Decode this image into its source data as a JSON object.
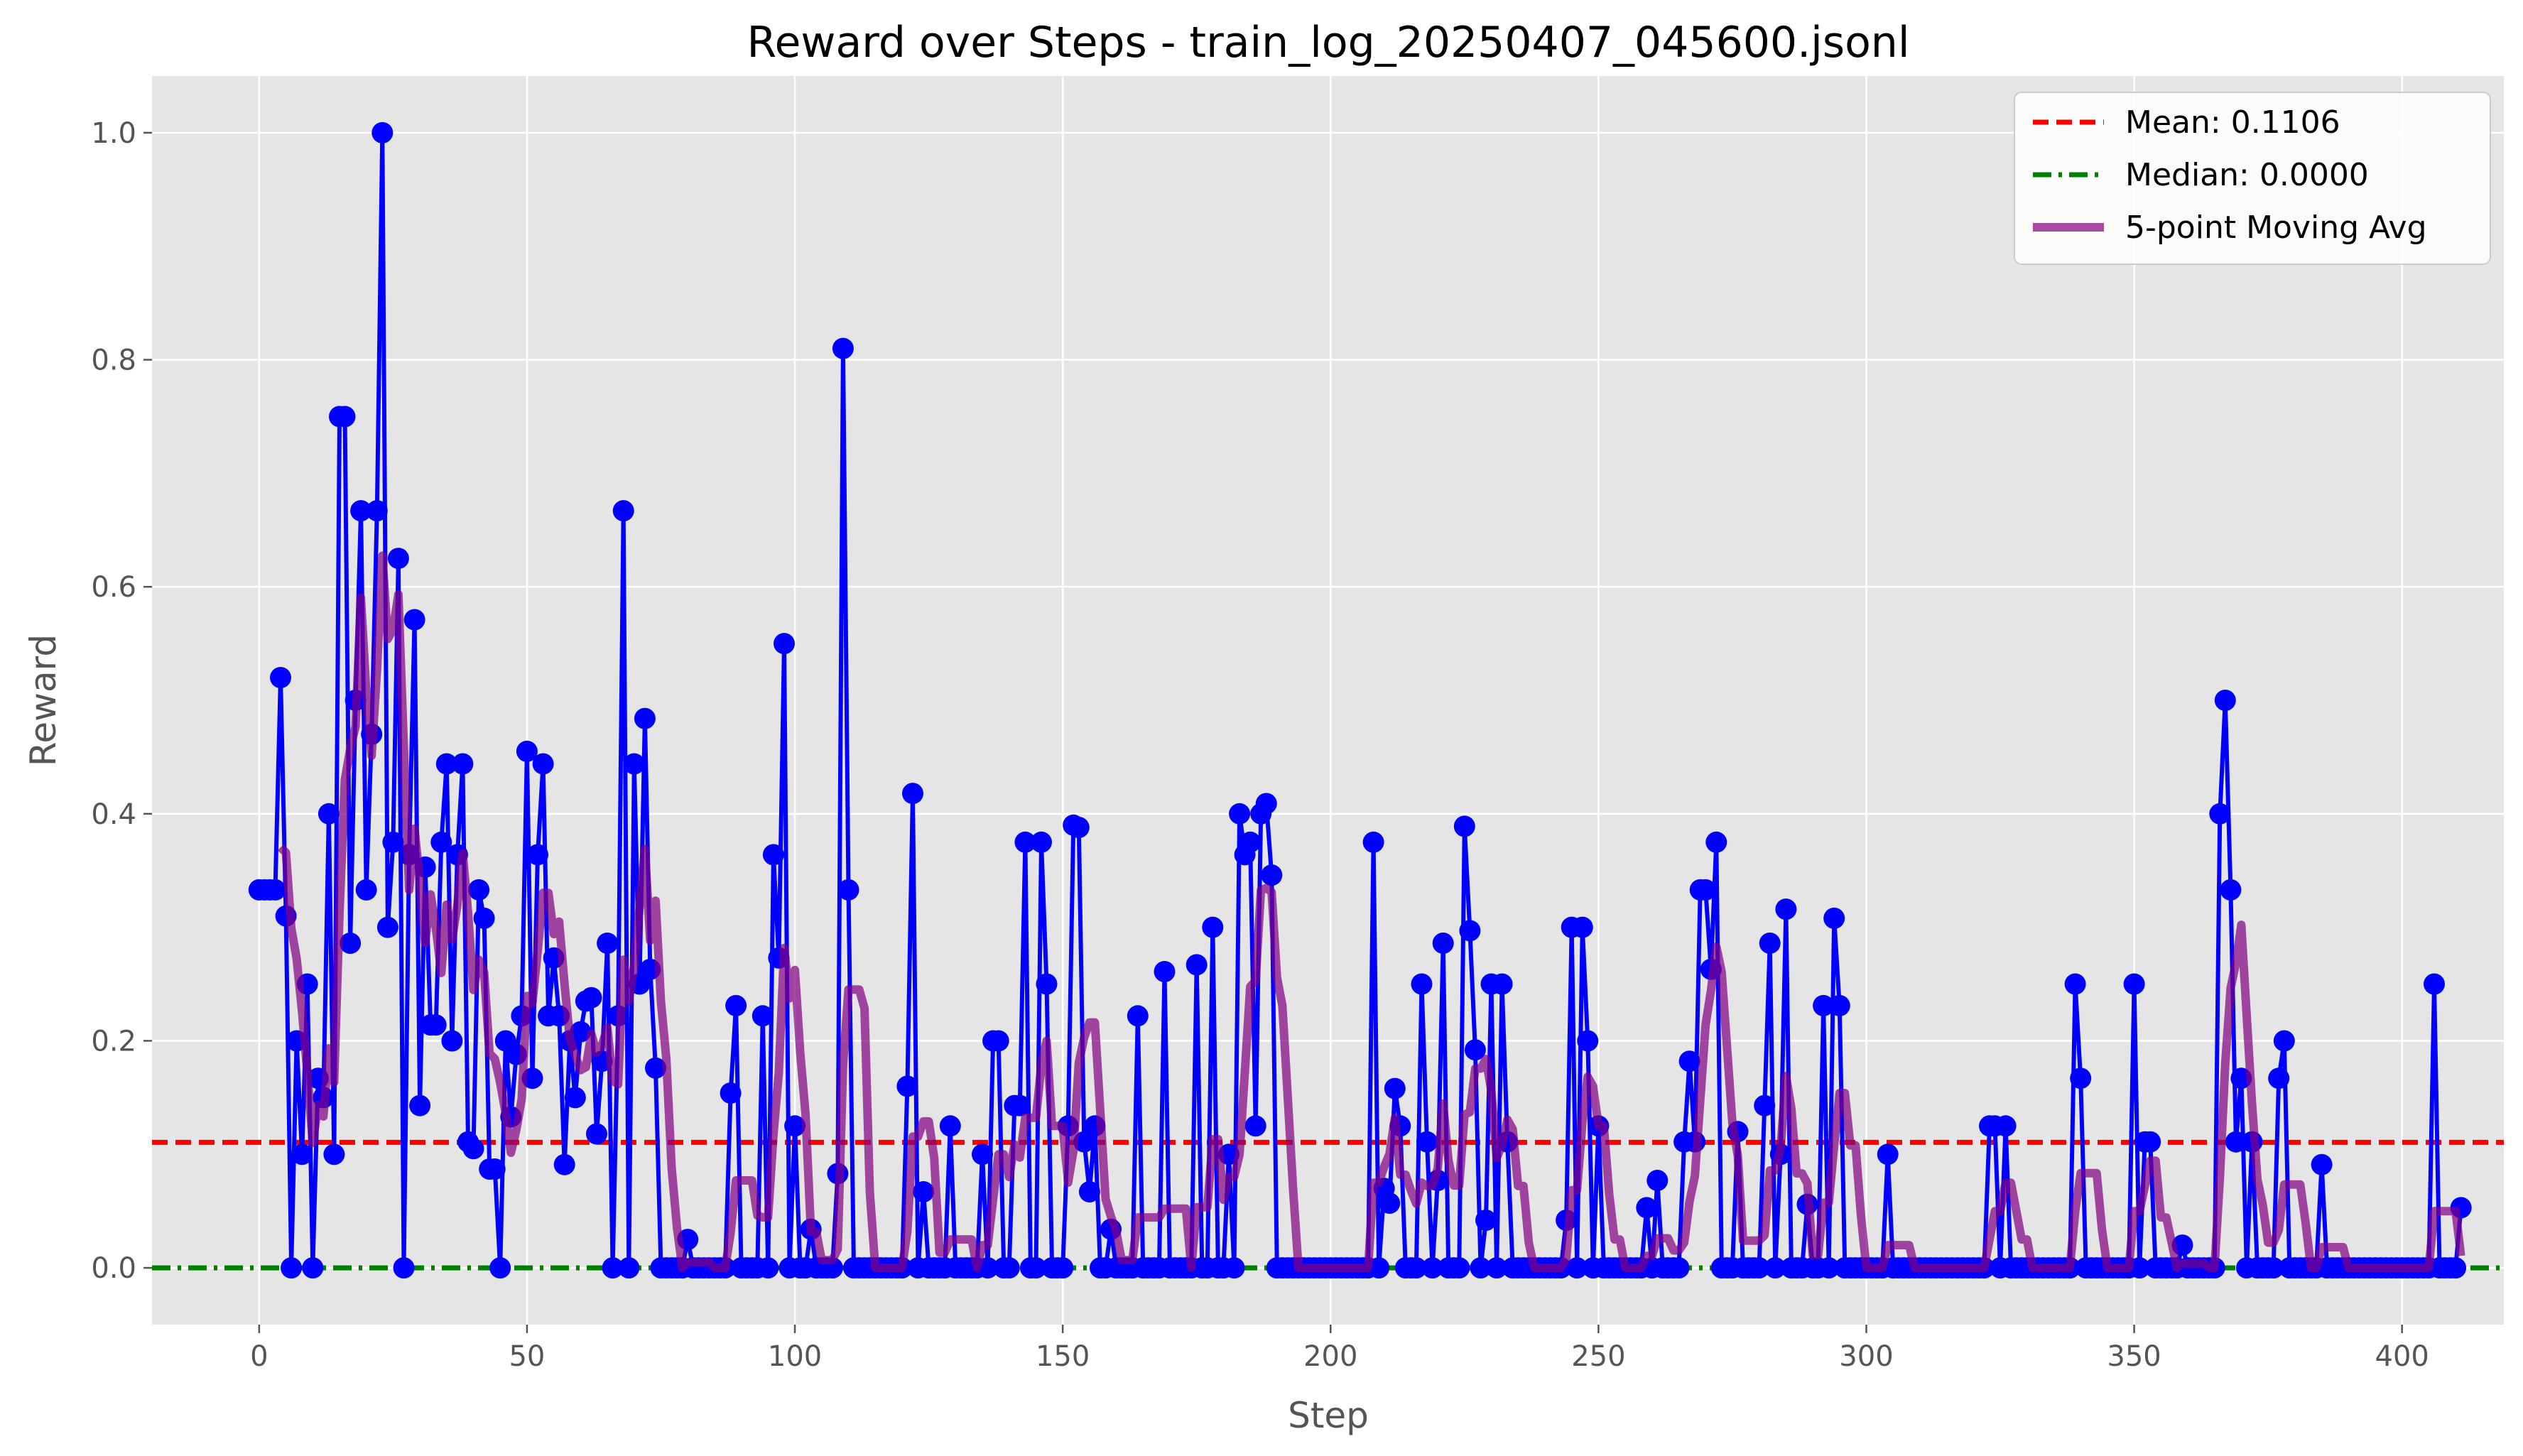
{
  "chart_data": {
    "type": "line",
    "title": "Reward over Steps - train_log_20250407_045600.jsonl",
    "xlabel": "Step",
    "ylabel": "Reward",
    "xlim": [
      -20,
      419
    ],
    "ylim": [
      -0.05,
      1.05
    ],
    "xticks": [
      0,
      50,
      100,
      150,
      200,
      250,
      300,
      350,
      400
    ],
    "yticks": [
      0.0,
      0.2,
      0.4,
      0.6,
      0.8,
      1.0
    ],
    "ytick_labels": [
      "0.0",
      "0.2",
      "0.4",
      "0.6",
      "0.8",
      "1.0"
    ],
    "grid": true,
    "legend_position": "top-right",
    "colors": {
      "series": "#0000ff",
      "mean": "#ff0000",
      "median": "#008000",
      "moving_avg": "#800080",
      "plot_bg": "#e5e5e5",
      "grid": "#ffffff"
    },
    "mean_line": {
      "label": "Mean: 0.1106",
      "value": 0.1106
    },
    "median_line": {
      "label": "Median: 0.0000",
      "value": 0.0
    },
    "moving_avg": {
      "label": "5-point Moving Avg",
      "window": 5
    },
    "series": [
      {
        "x_start": 0,
        "values": [
          0.333,
          0.333,
          0.333,
          0.333,
          0.52,
          0.31,
          0,
          0.2,
          0.1,
          0.25,
          0,
          0.167,
          0.15,
          0.4,
          0.1,
          0.75,
          0.75,
          0.286,
          0.5,
          0.667,
          0.333,
          0.47,
          0.667,
          1.0,
          0.3,
          0.375,
          0.625,
          0,
          0.364,
          0.571,
          0.143,
          0.353,
          0.214,
          0.214,
          0.375,
          0.444,
          0.2,
          0.364,
          0.444,
          0.111,
          0.105,
          0.333,
          0.308,
          0.087,
          0.087,
          0,
          0.2,
          0.133,
          0.188,
          0.222,
          0.455,
          0.167,
          0.364,
          0.444,
          0.222,
          0.273,
          0.222,
          0.091,
          0.2,
          0.15,
          0.208,
          0.235,
          0.238,
          0.118,
          0.182,
          0.286,
          0,
          0.222,
          0.667,
          0,
          0.444,
          0.25,
          0.484,
          0.263,
          0.176,
          0,
          0,
          0,
          0,
          0,
          0.025,
          0,
          0,
          0,
          0,
          0,
          0,
          0,
          0.154,
          0.231,
          0,
          0,
          0,
          0,
          0.222,
          0,
          0.364,
          0.273,
          0.55,
          0,
          0.125,
          0,
          0,
          0.034,
          0,
          0,
          0,
          0,
          0.083,
          0.81,
          0.333,
          0,
          0,
          0,
          0,
          0,
          0,
          0,
          0,
          0,
          0,
          0.16,
          0.418,
          0,
          0.067,
          0,
          0,
          0,
          0,
          0.125,
          0,
          0,
          0,
          0,
          0,
          0.1,
          0,
          0.2,
          0.2,
          0,
          0,
          0.143,
          0.143,
          0.375,
          0,
          0,
          0.375,
          0.25,
          0,
          0,
          0,
          0.125,
          0.39,
          0.388,
          0.111,
          0.067,
          0.125,
          0,
          0,
          0.034,
          0,
          0,
          0,
          0,
          0.222,
          0,
          0,
          0,
          0,
          0.261,
          0,
          0,
          0,
          0,
          0,
          0.267,
          0,
          0,
          0.3,
          0,
          0,
          0.1,
          0,
          0.4,
          0.364,
          0.375,
          0.125,
          0.4,
          0.409,
          0.346,
          0,
          0,
          0,
          0,
          0,
          0,
          0,
          0,
          0,
          0,
          0,
          0,
          0,
          0,
          0,
          0,
          0,
          0,
          0.375,
          0,
          0.07,
          0.057,
          0.158,
          0.125,
          0,
          0,
          0,
          0.25,
          0.111,
          0,
          0.077,
          0.286,
          0,
          0,
          0,
          0.389,
          0.297,
          0.192,
          0,
          0.042,
          0.25,
          0,
          0.25,
          0.111,
          0,
          0,
          0,
          0,
          0,
          0,
          0,
          0,
          0,
          0,
          0.042,
          0.3,
          0,
          0.3,
          0.2,
          0,
          0.125,
          0,
          0,
          0,
          0,
          0,
          0,
          0,
          0,
          0.053,
          0,
          0.077,
          0,
          0,
          0,
          0,
          0.111,
          0.182,
          0.111,
          0.333,
          0.333,
          0.263,
          0.375,
          0,
          0,
          0,
          0.12,
          0,
          0,
          0,
          0,
          0.143,
          0.286,
          0,
          0.1,
          0.316,
          0,
          0,
          0,
          0.056,
          0,
          0,
          0.231,
          0,
          0.308,
          0.231,
          0,
          0,
          0,
          0,
          0,
          0,
          0,
          0,
          0.1,
          0,
          0,
          0,
          0,
          0,
          0,
          0,
          0,
          0,
          0,
          0,
          0,
          0,
          0,
          0,
          0,
          0,
          0,
          0.125,
          0.125,
          0,
          0.125,
          0,
          0,
          0,
          0,
          0,
          0,
          0,
          0,
          0,
          0,
          0,
          0,
          0.25,
          0.167,
          0,
          0,
          0,
          0,
          0,
          0,
          0,
          0,
          0,
          0.25,
          0,
          0.111,
          0.111,
          0,
          0,
          0,
          0,
          0,
          0.02,
          0,
          0,
          0,
          0,
          0,
          0,
          0.4,
          0.5,
          0.333,
          0.111,
          0.167,
          0,
          0.111,
          0,
          0,
          0,
          0,
          0.167,
          0.2,
          0,
          0,
          0,
          0,
          0,
          0,
          0.091,
          0,
          0,
          0,
          0,
          0,
          0,
          0,
          0,
          0,
          0,
          0,
          0,
          0,
          0,
          0,
          0,
          0,
          0,
          0,
          0,
          0.25,
          0,
          0,
          0,
          0,
          0.053
        ]
      }
    ]
  }
}
